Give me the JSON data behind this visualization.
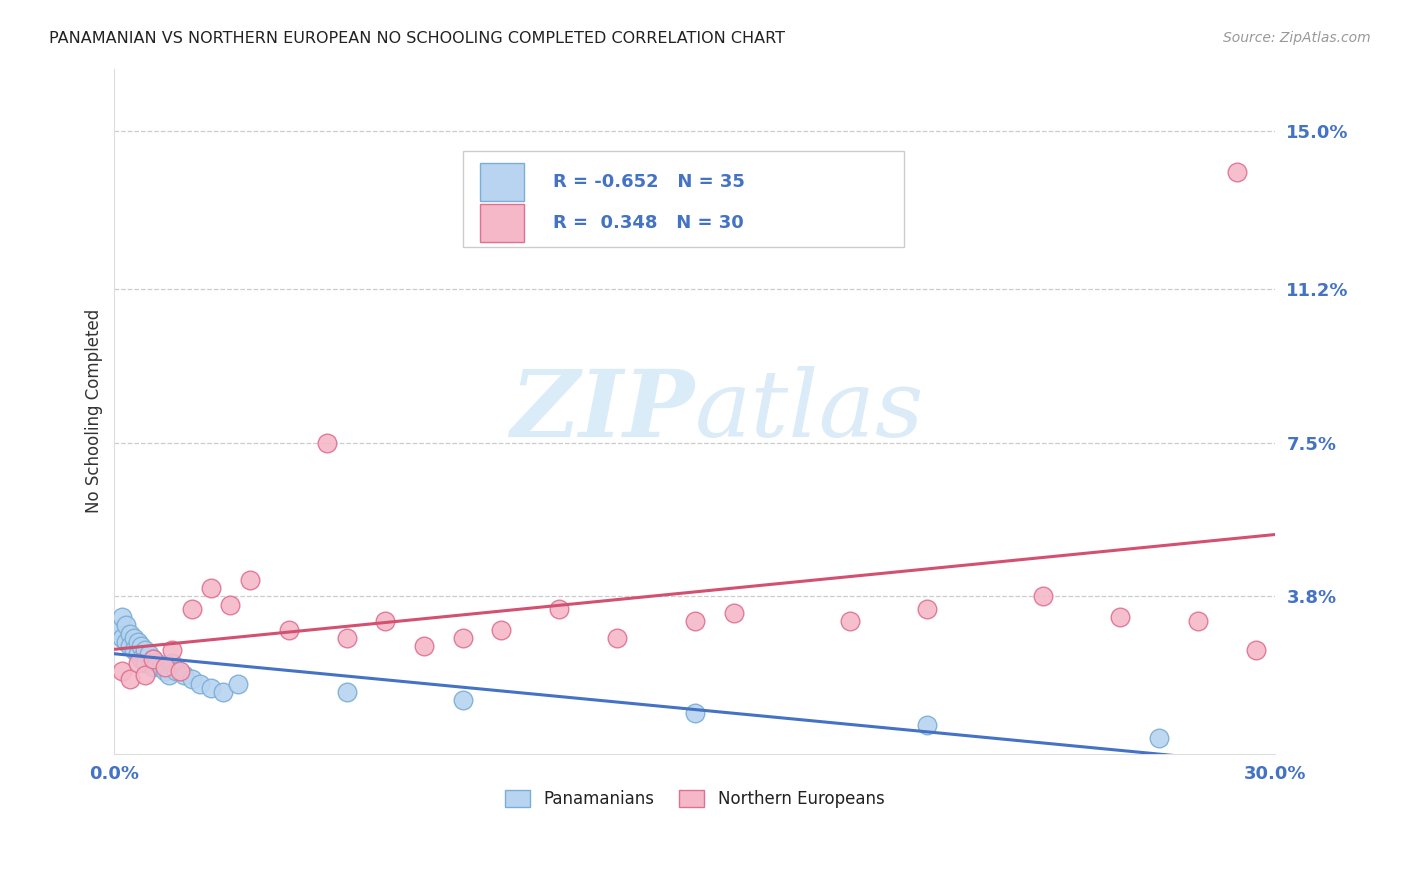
{
  "title": "PANAMANIAN VS NORTHERN EUROPEAN NO SCHOOLING COMPLETED CORRELATION CHART",
  "source": "Source: ZipAtlas.com",
  "ylabel": "No Schooling Completed",
  "xlim": [
    0.0,
    0.3
  ],
  "ylim": [
    0.0,
    0.165
  ],
  "ytick_vals": [
    0.038,
    0.075,
    0.112,
    0.15
  ],
  "ytick_labels": [
    "3.8%",
    "7.5%",
    "11.2%",
    "15.0%"
  ],
  "xtick_vals": [
    0.0,
    0.1,
    0.2,
    0.3
  ],
  "xtick_labels": [
    "0.0%",
    "",
    "",
    "30.0%"
  ],
  "panamanian_color": "#b8d4f0",
  "panamanian_edge": "#7aaed6",
  "northern_color": "#f5b8c8",
  "northern_edge": "#e07090",
  "line_blue": "#4472c4",
  "line_pink": "#d45070",
  "legend_R1": "-0.652",
  "legend_N1": "35",
  "legend_R2": "0.348",
  "legend_N2": "30",
  "pan_x": [
    0.001,
    0.002,
    0.002,
    0.003,
    0.003,
    0.004,
    0.004,
    0.005,
    0.005,
    0.006,
    0.006,
    0.007,
    0.007,
    0.008,
    0.008,
    0.009,
    0.01,
    0.01,
    0.011,
    0.012,
    0.013,
    0.014,
    0.015,
    0.016,
    0.018,
    0.02,
    0.022,
    0.025,
    0.028,
    0.032,
    0.06,
    0.09,
    0.15,
    0.21,
    0.27
  ],
  "pan_y": [
    0.03,
    0.033,
    0.028,
    0.031,
    0.027,
    0.029,
    0.026,
    0.028,
    0.025,
    0.027,
    0.024,
    0.026,
    0.023,
    0.025,
    0.022,
    0.024,
    0.023,
    0.021,
    0.022,
    0.021,
    0.02,
    0.019,
    0.022,
    0.02,
    0.019,
    0.018,
    0.017,
    0.016,
    0.015,
    0.017,
    0.015,
    0.013,
    0.01,
    0.007,
    0.004
  ],
  "nor_x": [
    0.002,
    0.004,
    0.006,
    0.008,
    0.01,
    0.013,
    0.015,
    0.017,
    0.02,
    0.025,
    0.03,
    0.035,
    0.045,
    0.055,
    0.06,
    0.07,
    0.08,
    0.09,
    0.1,
    0.115,
    0.13,
    0.15,
    0.16,
    0.19,
    0.21,
    0.24,
    0.26,
    0.28,
    0.29,
    0.295
  ],
  "nor_y": [
    0.02,
    0.018,
    0.022,
    0.019,
    0.023,
    0.021,
    0.025,
    0.02,
    0.035,
    0.04,
    0.036,
    0.042,
    0.03,
    0.075,
    0.028,
    0.032,
    0.026,
    0.028,
    0.03,
    0.035,
    0.028,
    0.032,
    0.034,
    0.032,
    0.035,
    0.038,
    0.033,
    0.032,
    0.14,
    0.025
  ],
  "watermark_zip": "ZIP",
  "watermark_atlas": "atlas",
  "bg": "#ffffff"
}
